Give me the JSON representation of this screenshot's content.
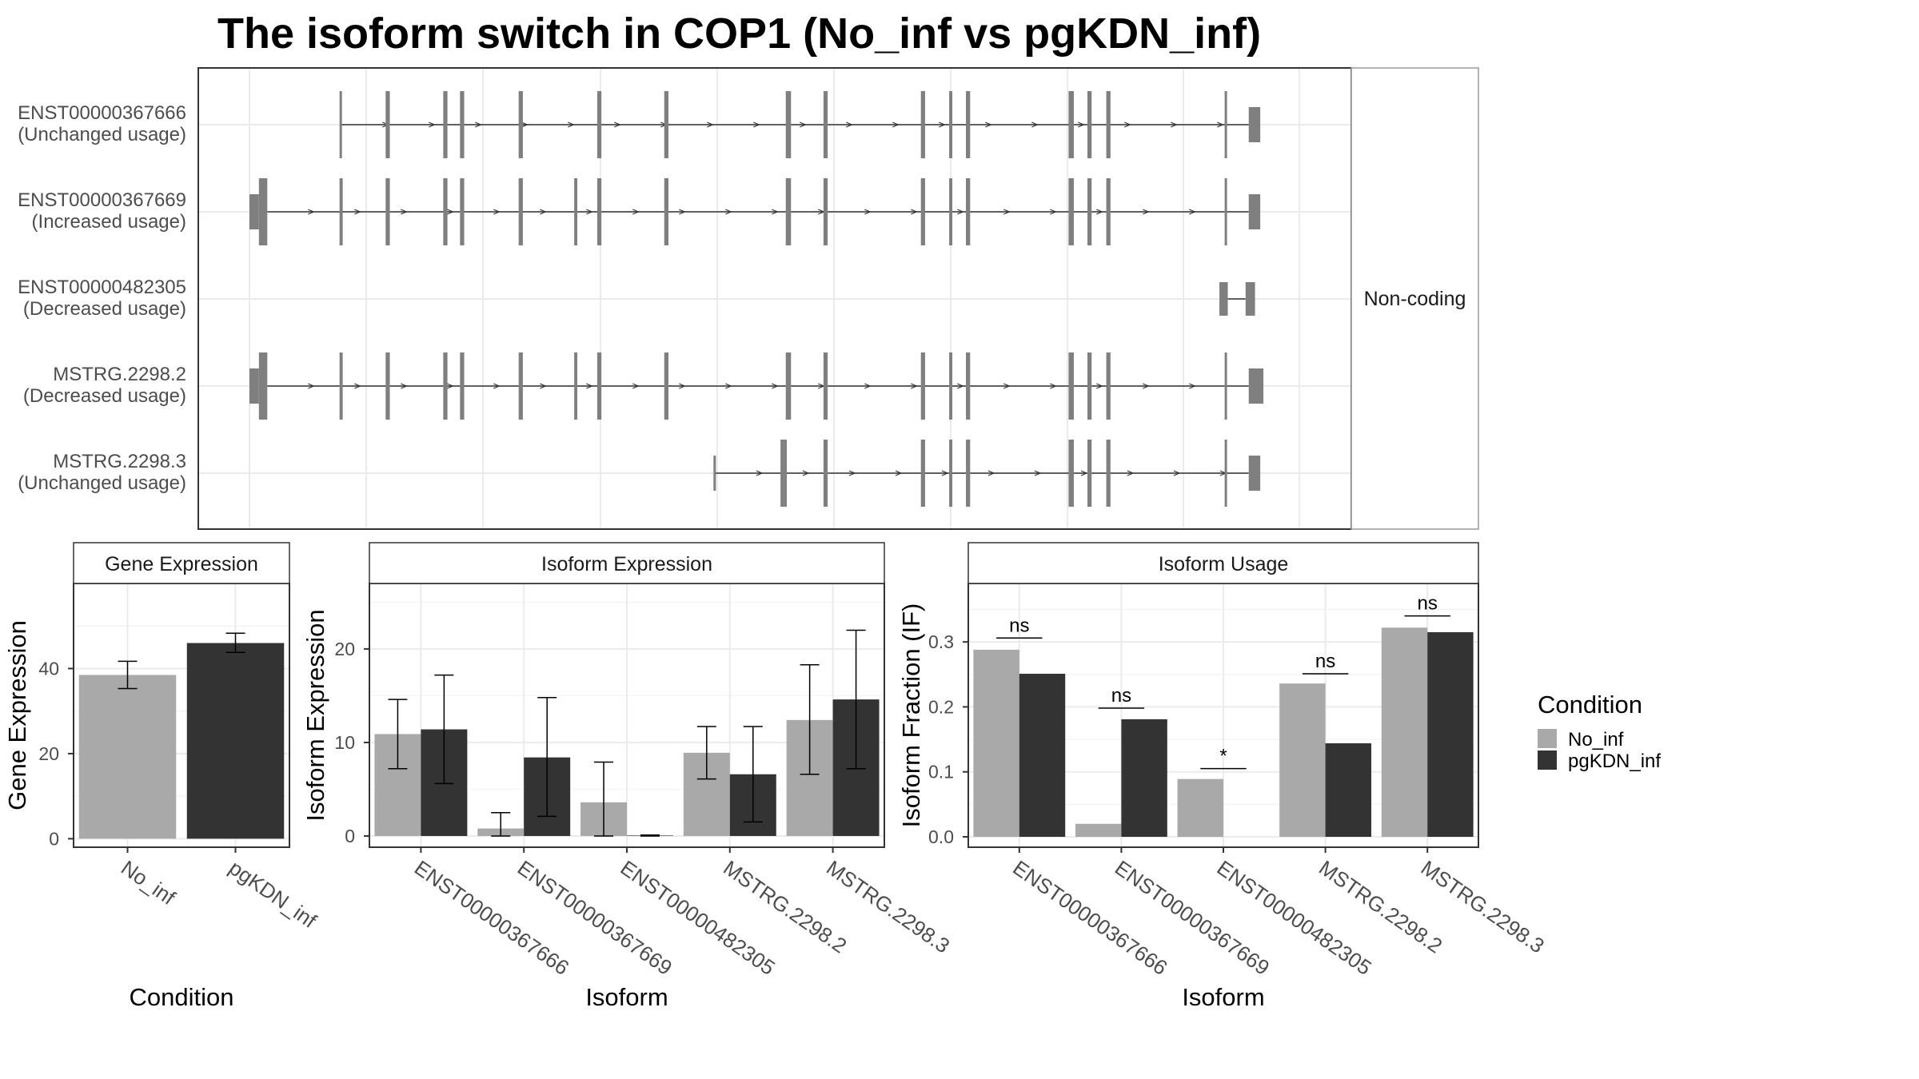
{
  "title": "The isoform switch in COP1 (No_inf vs pgKDN_inf)",
  "colors": {
    "no_inf": "#a9a9a9",
    "pgkdn_inf": "#333333",
    "exon": "#7f7f7f",
    "grid": "#ebebeb",
    "frame": "#333333",
    "strip_border": "#999999"
  },
  "structure": {
    "strip_label": "Non-coding",
    "x_range": [
      0,
      1000
    ],
    "transcripts": [
      {
        "id": "ENST00000367666",
        "usage": "(Unchanged usage)",
        "exons": [
          [
            86,
            88,
            "thin"
          ],
          [
            130,
            134,
            "thin"
          ],
          [
            185,
            189,
            "thin"
          ],
          [
            201,
            205,
            "thin"
          ],
          [
            257,
            261,
            "thin"
          ],
          [
            332,
            336,
            "thin"
          ],
          [
            396,
            400,
            "thin"
          ],
          [
            512,
            517,
            "thin"
          ],
          [
            548,
            552,
            "thin"
          ],
          [
            641,
            645,
            "thin"
          ],
          [
            668,
            671,
            "thin"
          ],
          [
            684,
            688,
            "thin"
          ],
          [
            782,
            787,
            "thin"
          ],
          [
            800,
            804,
            "thin"
          ],
          [
            818,
            822,
            "thin"
          ],
          [
            931,
            933,
            "thin"
          ],
          [
            954,
            965,
            "utr"
          ]
        ],
        "intron": [
          88,
          954
        ]
      },
      {
        "id": "ENST00000367669",
        "usage": "(Increased usage)",
        "exons": [
          [
            0,
            9,
            "utr"
          ],
          [
            9,
            17,
            "thin"
          ],
          [
            86,
            89,
            "thin"
          ],
          [
            130,
            134,
            "thin"
          ],
          [
            185,
            189,
            "thin"
          ],
          [
            201,
            205,
            "thin"
          ],
          [
            257,
            261,
            "thin"
          ],
          [
            310,
            313,
            "thin"
          ],
          [
            332,
            336,
            "thin"
          ],
          [
            396,
            400,
            "thin"
          ],
          [
            512,
            517,
            "thin"
          ],
          [
            548,
            552,
            "thin"
          ],
          [
            641,
            645,
            "thin"
          ],
          [
            668,
            671,
            "thin"
          ],
          [
            684,
            688,
            "thin"
          ],
          [
            782,
            787,
            "thin"
          ],
          [
            800,
            804,
            "thin"
          ],
          [
            818,
            822,
            "thin"
          ],
          [
            931,
            933,
            "thin"
          ],
          [
            954,
            965,
            "utr"
          ]
        ],
        "intron": [
          17,
          954
        ]
      },
      {
        "id": "ENST00000482305",
        "usage": "(Decreased usage)",
        "exons": [
          [
            926,
            934,
            "nc"
          ],
          [
            951,
            960,
            "nc"
          ]
        ],
        "intron": [
          934,
          951
        ]
      },
      {
        "id": "MSTRG.2298.2",
        "usage": "(Decreased usage)",
        "exons": [
          [
            0,
            9,
            "utr"
          ],
          [
            9,
            17,
            "thin"
          ],
          [
            86,
            89,
            "thin"
          ],
          [
            130,
            134,
            "thin"
          ],
          [
            185,
            189,
            "thin"
          ],
          [
            201,
            205,
            "thin"
          ],
          [
            257,
            261,
            "thin"
          ],
          [
            310,
            313,
            "thin"
          ],
          [
            332,
            336,
            "thin"
          ],
          [
            396,
            400,
            "thin"
          ],
          [
            512,
            517,
            "thin"
          ],
          [
            548,
            552,
            "thin"
          ],
          [
            641,
            645,
            "thin"
          ],
          [
            668,
            671,
            "thin"
          ],
          [
            684,
            688,
            "thin"
          ],
          [
            782,
            787,
            "thin"
          ],
          [
            800,
            804,
            "thin"
          ],
          [
            818,
            822,
            "thin"
          ],
          [
            931,
            933,
            "thin"
          ],
          [
            954,
            968,
            "utr"
          ]
        ],
        "intron": [
          17,
          954
        ]
      },
      {
        "id": "MSTRG.2298.3",
        "usage": "(Unchanged usage)",
        "exons": [
          [
            443,
            445,
            "cap"
          ],
          [
            507,
            510,
            "thin"
          ],
          [
            510,
            513,
            "thin"
          ],
          [
            548,
            552,
            "thin"
          ],
          [
            641,
            645,
            "thin"
          ],
          [
            668,
            671,
            "thin"
          ],
          [
            684,
            688,
            "thin"
          ],
          [
            782,
            787,
            "thin"
          ],
          [
            800,
            804,
            "thin"
          ],
          [
            818,
            822,
            "thin"
          ],
          [
            931,
            933,
            "thin"
          ],
          [
            954,
            965,
            "utr"
          ]
        ],
        "intron": [
          445,
          954
        ]
      }
    ]
  },
  "chart_data": [
    {
      "type": "bar",
      "panel": "Gene Expression",
      "xlabel": "Condition",
      "ylabel": "Gene Expression",
      "categories": [
        "No_inf",
        "pgKDN_inf"
      ],
      "values": [
        38.5,
        46.0
      ],
      "errors": [
        [
          35.3,
          41.7
        ],
        [
          43.8,
          48.3
        ]
      ],
      "ylim": [
        -2,
        60
      ],
      "yticks": [
        0,
        20,
        40
      ],
      "grid": true
    },
    {
      "type": "bar",
      "panel": "Isoform Expression",
      "xlabel": "Isoform",
      "ylabel": "Isoform Expression",
      "categories": [
        "ENST00000367666",
        "ENST00000367669",
        "ENST00000482305",
        "MSTRG.2298.2",
        "MSTRG.2298.3"
      ],
      "series": [
        {
          "name": "No_inf",
          "values": [
            10.9,
            0.8,
            3.6,
            8.9,
            12.4
          ],
          "errors": [
            [
              7.2,
              14.6
            ],
            [
              0.0,
              2.5
            ],
            [
              0.0,
              7.9
            ],
            [
              6.1,
              11.7
            ],
            [
              6.6,
              18.3
            ]
          ]
        },
        {
          "name": "pgKDN_inf",
          "values": [
            11.4,
            8.4,
            0.05,
            6.6,
            14.6
          ],
          "errors": [
            [
              5.6,
              17.2
            ],
            [
              2.1,
              14.8
            ],
            [
              0.0,
              0.1
            ],
            [
              1.5,
              11.7
            ],
            [
              7.2,
              22.0
            ]
          ]
        }
      ],
      "ylim": [
        -1.2,
        27
      ],
      "yticks": [
        0,
        10,
        20
      ],
      "grid": true
    },
    {
      "type": "bar",
      "panel": "Isoform Usage",
      "xlabel": "Isoform",
      "ylabel": "Isoform Fraction (IF)",
      "categories": [
        "ENST00000367666",
        "ENST00000367669",
        "ENST00000482305",
        "MSTRG.2298.2",
        "MSTRG.2298.3"
      ],
      "series": [
        {
          "name": "No_inf",
          "values": [
            0.288,
            0.02,
            0.089,
            0.236,
            0.322
          ]
        },
        {
          "name": "pgKDN_inf",
          "values": [
            0.251,
            0.181,
            0.0,
            0.144,
            0.315
          ]
        }
      ],
      "significance": [
        {
          "label": "ns",
          "y": 0.306
        },
        {
          "label": "ns",
          "y": 0.198
        },
        {
          "label": "*",
          "y": 0.105
        },
        {
          "label": "ns",
          "y": 0.251
        },
        {
          "label": "ns",
          "y": 0.34
        }
      ],
      "ylim": [
        -0.016,
        0.39
      ],
      "yticks": [
        0.0,
        0.1,
        0.2,
        0.3
      ],
      "ytick_labels": [
        "0.0",
        "0.1",
        "0.2",
        "0.3"
      ],
      "grid": true
    }
  ],
  "legend": {
    "title": "Condition",
    "items": [
      {
        "label": "No_inf",
        "color": "#a9a9a9"
      },
      {
        "label": "pgKDN_inf",
        "color": "#333333"
      }
    ]
  }
}
